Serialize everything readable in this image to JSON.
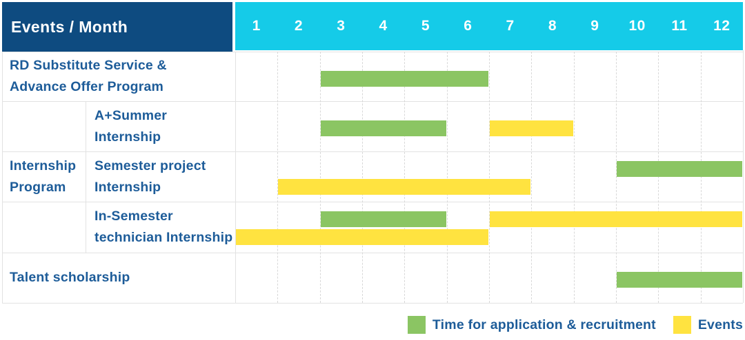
{
  "header": {
    "corner_label": "Events / Month",
    "months": [
      "1",
      "2",
      "3",
      "4",
      "5",
      "6",
      "7",
      "8",
      "9",
      "10",
      "11",
      "12"
    ]
  },
  "legend": [
    {
      "label": "Time for application & recruitment",
      "color_key": "recruitment",
      "color": "#8BC563"
    },
    {
      "label": "Events",
      "color_key": "events",
      "color": "#FFE340"
    }
  ],
  "colors": {
    "header_bg": "#0E4B80",
    "months_bg": "#15CBE8",
    "recruitment": "#8BC563",
    "events": "#FFE340",
    "label_text": "#1D5C99",
    "grid": "#E2E2E2"
  },
  "chart_data": {
    "type": "gantt",
    "title": "Events / Month",
    "x_axis": {
      "unit": "month",
      "ticks": [
        1,
        2,
        3,
        4,
        5,
        6,
        7,
        8,
        9,
        10,
        11,
        12
      ]
    },
    "series_legend": [
      "Time for application & recruitment",
      "Events"
    ],
    "rows": [
      {
        "group": null,
        "label_lines": [
          "RD Substitute Service &",
          "Advance Offer Program"
        ],
        "bars": [
          {
            "series": "Time for application & recruitment",
            "color_key": "recruitment",
            "start_month": 3,
            "end_month": 6,
            "lane": "center"
          }
        ]
      },
      {
        "group": "Internship Program",
        "label_lines": [
          "A+Summer",
          "Internship"
        ],
        "bars": [
          {
            "series": "Time for application & recruitment",
            "color_key": "recruitment",
            "start_month": 3,
            "end_month": 5,
            "lane": "center"
          },
          {
            "series": "Events",
            "color_key": "events",
            "start_month": 7,
            "end_month": 8,
            "lane": "center"
          }
        ]
      },
      {
        "group": "Internship Program",
        "label_lines": [
          "Semester project",
          "Internship"
        ],
        "bars": [
          {
            "series": "Time for application & recruitment",
            "color_key": "recruitment",
            "start_month": 10,
            "end_month": 12,
            "lane": "upper"
          },
          {
            "series": "Events",
            "color_key": "events",
            "start_month": 2,
            "end_month": 7,
            "lane": "lower"
          }
        ]
      },
      {
        "group": "Internship Program",
        "label_lines": [
          "In-Semester",
          "technician Internship"
        ],
        "bars": [
          {
            "series": "Time for application & recruitment",
            "color_key": "recruitment",
            "start_month": 3,
            "end_month": 5,
            "lane": "upper"
          },
          {
            "series": "Events",
            "color_key": "events",
            "start_month": 7,
            "end_month": 12,
            "lane": "upper"
          },
          {
            "series": "Events",
            "color_key": "events",
            "start_month": 1,
            "end_month": 6,
            "lane": "lower"
          }
        ]
      },
      {
        "group": null,
        "label_lines": [
          "Talent scholarship"
        ],
        "bars": [
          {
            "series": "Time for application & recruitment",
            "color_key": "recruitment",
            "start_month": 10,
            "end_month": 12,
            "lane": "center"
          }
        ]
      }
    ],
    "group_label_lines": [
      "Internship",
      "Program"
    ]
  }
}
